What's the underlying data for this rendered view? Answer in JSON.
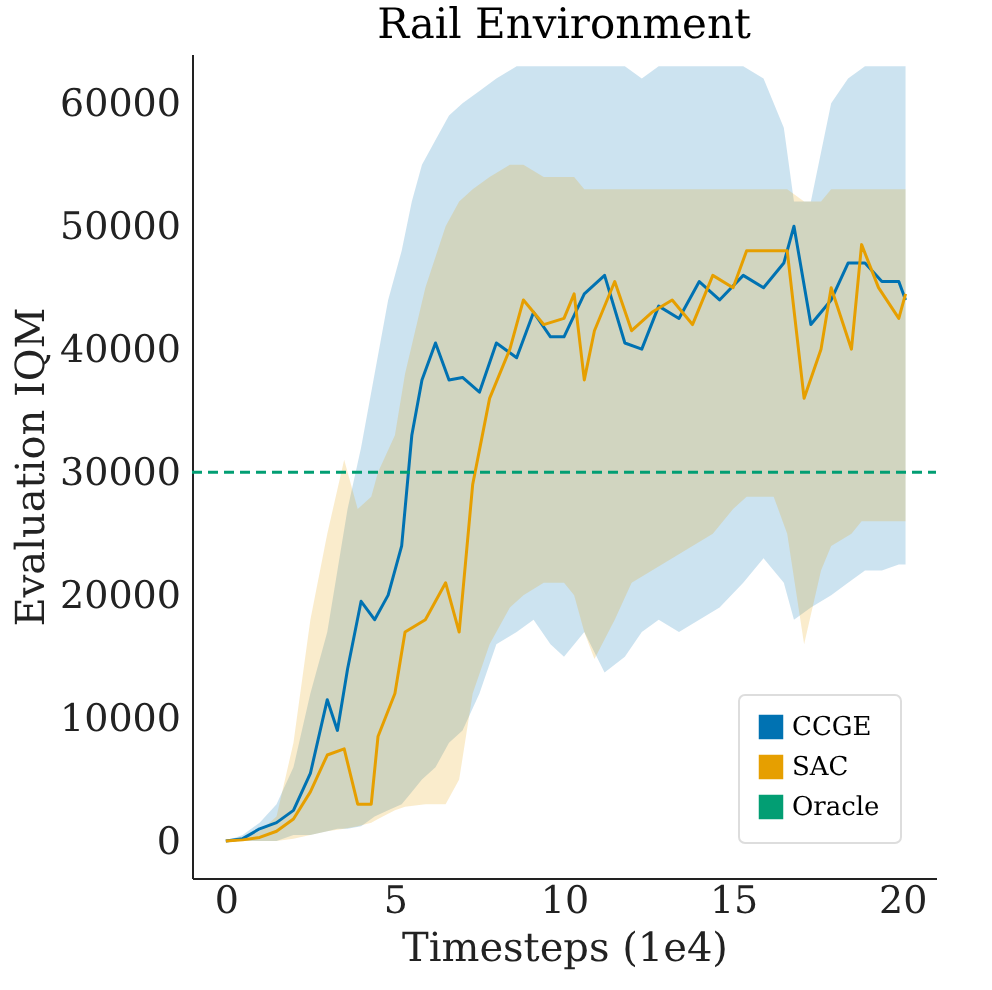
{
  "chart_data": {
    "type": "line",
    "title": "Rail Environment",
    "xlabel": "Timesteps (1e4)",
    "ylabel": "Evaluation IQM",
    "xlim": [
      -1,
      21
    ],
    "ylim": [
      -3000,
      64000
    ],
    "xticks": [
      0,
      5,
      10,
      15,
      20
    ],
    "yticks": [
      0,
      10000,
      20000,
      30000,
      40000,
      50000,
      60000
    ],
    "grid": false,
    "legend": "bottom right",
    "series": [
      {
        "name": "CCGE",
        "color": "#0072b2",
        "x": [
          0,
          0.5,
          1,
          1.5,
          2,
          2.5,
          3,
          3.3,
          3.6,
          4,
          4.4,
          4.8,
          5.2,
          5.5,
          5.8,
          6.2,
          6.6,
          7,
          7.5,
          8,
          8.6,
          9.1,
          9.6,
          10,
          10.6,
          11.2,
          11.8,
          12.3,
          12.8,
          13.4,
          14,
          14.6,
          15.3,
          15.9,
          16.5,
          16.8,
          17.3,
          17.9,
          18.4,
          18.9,
          19.4,
          19.9,
          20.1
        ],
        "values": [
          0,
          200,
          1000,
          1500,
          2500,
          5500,
          11500,
          9000,
          14000,
          19500,
          18000,
          20000,
          24000,
          33000,
          37500,
          40500,
          37500,
          37700,
          36500,
          40500,
          39300,
          43000,
          41000,
          41000,
          44500,
          46000,
          40500,
          40000,
          43500,
          42500,
          45500,
          44000,
          46000,
          45000,
          47000,
          50000,
          42000,
          44000,
          47000,
          47000,
          45500,
          45500,
          44000
        ],
        "lower": [
          0,
          0,
          0,
          0,
          500,
          500,
          800,
          1000,
          1000,
          1200,
          2000,
          2500,
          3000,
          4000,
          5000,
          6000,
          8000,
          9000,
          12000,
          16000,
          17000,
          18000,
          16000,
          15000,
          17000,
          13700,
          15000,
          17000,
          18000,
          17000,
          18000,
          19000,
          21000,
          23000,
          21000,
          18000,
          19000,
          20000,
          21000,
          22000,
          22000,
          22500,
          22500
        ],
        "upper": [
          0,
          500,
          1500,
          3000,
          6000,
          12000,
          17000,
          22000,
          27000,
          32000,
          38000,
          44000,
          48000,
          52000,
          55000,
          57000,
          59000,
          60000,
          61000,
          62000,
          63000,
          63000,
          63000,
          63000,
          63000,
          63000,
          63000,
          62000,
          63000,
          63000,
          63000,
          63000,
          63000,
          62000,
          58000,
          52000,
          52000,
          60000,
          62000,
          63000,
          63000,
          63000,
          63000
        ]
      },
      {
        "name": "SAC",
        "color": "#e69f00",
        "x": [
          0,
          0.5,
          1,
          1.5,
          2,
          2.5,
          3,
          3.5,
          3.9,
          4.3,
          4.5,
          5,
          5.3,
          5.9,
          6.5,
          6.9,
          7.3,
          7.8,
          8.4,
          8.8,
          9.4,
          10,
          10.3,
          10.6,
          10.9,
          11.5,
          12,
          12.6,
          13.2,
          13.8,
          14.4,
          15,
          15.4,
          16.2,
          16.6,
          17.1,
          17.6,
          17.9,
          18.5,
          18.8,
          19.3,
          19.9,
          20.1
        ],
        "values": [
          0,
          100,
          300,
          800,
          1800,
          4000,
          7000,
          7500,
          3000,
          3000,
          8500,
          12000,
          17000,
          18000,
          21000,
          17000,
          29000,
          36000,
          40000,
          44000,
          42000,
          42500,
          44500,
          37500,
          41500,
          45500,
          41500,
          43000,
          44000,
          42000,
          46000,
          45000,
          48000,
          48000,
          48000,
          36000,
          40000,
          45000,
          40000,
          48500,
          45000,
          42500,
          44500
        ],
        "lower": [
          0,
          0,
          0,
          0,
          200,
          500,
          800,
          1000,
          1200,
          1500,
          1800,
          2500,
          2800,
          3000,
          3000,
          5000,
          12000,
          16000,
          19000,
          20000,
          21000,
          21000,
          20000,
          17000,
          14800,
          18000,
          21000,
          22000,
          23000,
          24000,
          25000,
          27000,
          28000,
          28000,
          25000,
          16000,
          22000,
          24000,
          25000,
          26000,
          26000,
          26000,
          26000
        ],
        "upper": [
          0,
          300,
          800,
          2000,
          8000,
          18000,
          25000,
          31000,
          27000,
          28000,
          30000,
          33000,
          38000,
          45000,
          50000,
          52000,
          53000,
          54000,
          55000,
          55000,
          54000,
          54000,
          54000,
          53000,
          53000,
          53000,
          53000,
          53000,
          53000,
          53000,
          53000,
          53000,
          53000,
          53000,
          53000,
          52000,
          52000,
          53000,
          53000,
          53000,
          53000,
          53000,
          53000
        ]
      },
      {
        "name": "Oracle",
        "color": "#029e73",
        "line_style": "dashed",
        "x": [
          -1,
          21
        ],
        "values": [
          30000,
          30000
        ]
      }
    ]
  }
}
